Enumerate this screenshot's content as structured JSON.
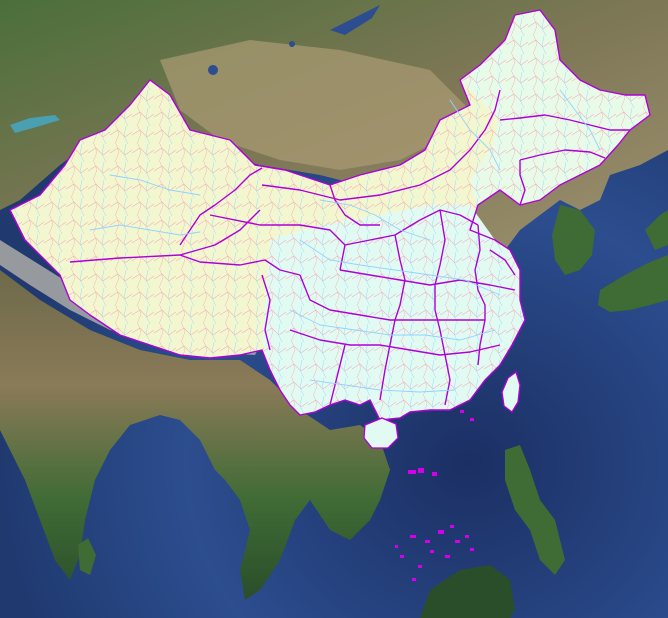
{
  "map": {
    "labels": [],
    "colors": {
      "ocean_deep": "#1b2f63",
      "ocean_mid": "#2c4d8f",
      "ocean_shallow": "#4a76b5",
      "land_green": "#3f6b35",
      "land_dark_green": "#2a4e2a",
      "land_brown": "#8a7a58",
      "land_tan": "#a89a72",
      "mountain_light": "#c9c2b0",
      "region_fill": "#f3f7cf",
      "region_fill_cyan": "#e1fbf3",
      "province_border": "#b000d8",
      "county_border": "#f2a9b8",
      "river": "#8fd3ff",
      "island_marker": "#d400e8"
    }
  }
}
